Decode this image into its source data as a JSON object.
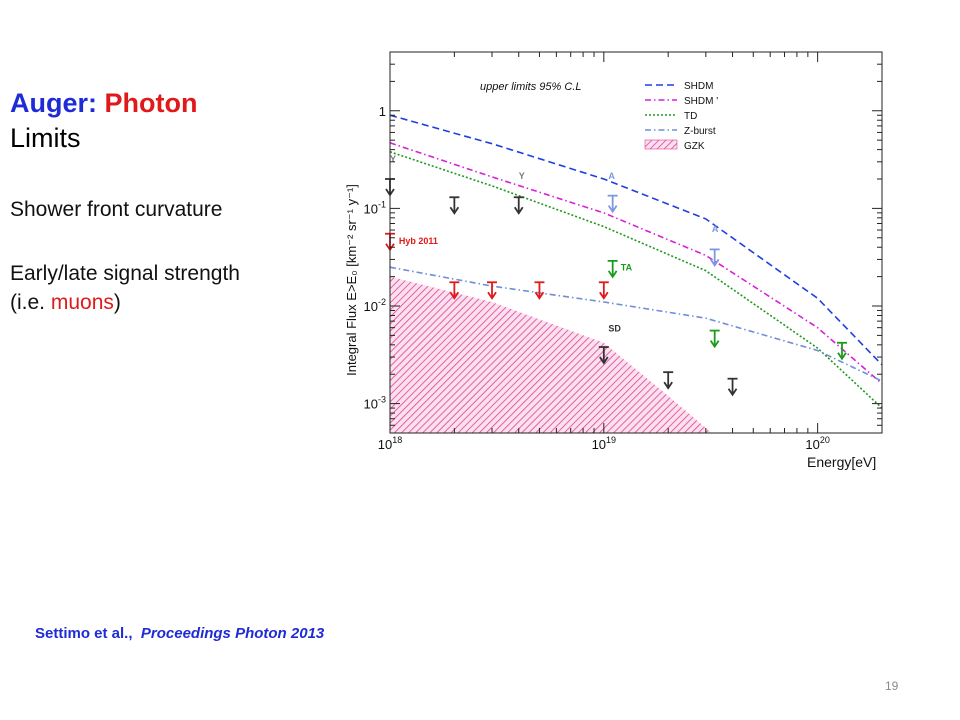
{
  "slide": {
    "title_part1": "Auger:",
    "title_part2": "Photon",
    "title_line2": "Limits",
    "bullet1": "Shower front curvature",
    "bullet2": "Early/late signal strength",
    "bullet3_prefix": "(i.e. ",
    "bullet3_highlight": "muons",
    "bullet3_suffix": ")",
    "citation_authors": "Settimo et al.,",
    "citation_venue": "Proceedings Photon 2013",
    "page_number": "19"
  },
  "chart_data": {
    "type": "line",
    "title": "upper limits 95% C.L",
    "xlabel": "Energy[eV]",
    "ylabel": "Integral Flux E>E₀ [km⁻² sr⁻¹ y⁻¹]",
    "x_scale": "log",
    "y_scale": "log",
    "xlim": [
      1e+18,
      2e+20
    ],
    "ylim": [
      0.0005,
      4
    ],
    "x_ticks": [
      {
        "value": 1e+18,
        "base": "10",
        "exp": "18"
      },
      {
        "value": 1e+19,
        "base": "10",
        "exp": "19"
      },
      {
        "value": 1e+20,
        "base": "10",
        "exp": "20"
      }
    ],
    "y_ticks": [
      {
        "value": 0.001,
        "base": "10",
        "exp": "-3"
      },
      {
        "value": 0.01,
        "base": "10",
        "exp": "-2"
      },
      {
        "value": 0.1,
        "base": "10",
        "exp": "-1"
      },
      {
        "value": 1,
        "base": "1",
        "exp": ""
      }
    ],
    "legend_position": "top-right",
    "series": [
      {
        "name": "SHDM",
        "color": "#1f3fe0",
        "dash": "7,4",
        "x": [
          1e+18,
          3e+18,
          1e+19,
          3e+19,
          1e+20,
          2e+20
        ],
        "y": [
          0.9,
          0.46,
          0.2,
          0.078,
          0.012,
          0.0025
        ]
      },
      {
        "name": "SHDM '",
        "color": "#d81fd8",
        "dash": "6,3,1.5,3",
        "x": [
          1e+18,
          3e+18,
          1e+19,
          3e+19,
          1e+20,
          2e+20
        ],
        "y": [
          0.47,
          0.21,
          0.09,
          0.033,
          0.006,
          0.0016
        ]
      },
      {
        "name": "TD",
        "color": "#1c9a1c",
        "dash": "2,2",
        "x": [
          1e+18,
          3e+18,
          1e+19,
          3e+19,
          1e+20,
          2e+20
        ],
        "y": [
          0.38,
          0.17,
          0.065,
          0.023,
          0.0037,
          0.0009
        ]
      },
      {
        "name": "Z-burst",
        "color": "#6f8fd8",
        "dash": "6,3,1.5,3",
        "x": [
          1e+18,
          3e+18,
          1e+19,
          3e+19,
          1e+20,
          2e+20
        ],
        "y": [
          0.025,
          0.016,
          0.011,
          0.0075,
          0.0035,
          0.0017
        ]
      }
    ],
    "gzk_band": {
      "name": "GZK",
      "color": "#e0409a",
      "x": [
        1e+18,
        3e+18,
        1e+19,
        2e+19,
        3.2e+19
      ],
      "y": [
        0.02,
        0.011,
        0.0042,
        0.0012,
        0.0005
      ]
    },
    "limits": [
      {
        "x": 1e+18,
        "y": 0.2,
        "color": "#333333"
      },
      {
        "x": 2e+18,
        "y": 0.13,
        "color": "#333333"
      },
      {
        "x": 4e+18,
        "y": 0.13,
        "color": "#333333"
      },
      {
        "x": 1e+18,
        "y": 0.055,
        "color": "#e01a1a"
      },
      {
        "x": 2e+18,
        "y": 0.0175,
        "color": "#e01a1a"
      },
      {
        "x": 3e+18,
        "y": 0.0175,
        "color": "#e01a1a"
      },
      {
        "x": 5e+18,
        "y": 0.0175,
        "color": "#e01a1a"
      },
      {
        "x": 1e+19,
        "y": 0.0175,
        "color": "#e01a1a"
      },
      {
        "x": 1.1e+19,
        "y": 0.135,
        "color": "#7f97e0"
      },
      {
        "x": 3.3e+19,
        "y": 0.038,
        "color": "#7f97e0"
      },
      {
        "x": 1.1e+19,
        "y": 0.029,
        "color": "#1c9a1c"
      },
      {
        "x": 3.3e+19,
        "y": 0.0056,
        "color": "#1c9a1c"
      },
      {
        "x": 1.3e+20,
        "y": 0.0042,
        "color": "#1c9a1c"
      },
      {
        "x": 1e+19,
        "y": 0.0038,
        "color": "#333333"
      },
      {
        "x": 2e+19,
        "y": 0.0021,
        "color": "#333333"
      },
      {
        "x": 4e+19,
        "y": 0.0018,
        "color": "#333333"
      }
    ],
    "annotations": [
      {
        "text": "Hyb 2011",
        "x": 1.1e+18,
        "y": 0.043,
        "color": "#e01a1a"
      },
      {
        "text": "TA",
        "x": 1.2e+19,
        "y": 0.023,
        "color": "#1c9a1c"
      },
      {
        "text": "SD",
        "x": 1.05e+19,
        "y": 0.0055,
        "color": "#333333"
      },
      {
        "text": "Y",
        "x": 1e+18,
        "y": 0.3,
        "color": "#7a7a7a"
      },
      {
        "text": "Y",
        "x": 4e+18,
        "y": 0.2,
        "color": "#7a7a7a"
      },
      {
        "text": "A",
        "x": 1.05e+19,
        "y": 0.2,
        "color": "#7f97e0"
      },
      {
        "text": "A",
        "x": 3.2e+19,
        "y": 0.057,
        "color": "#7f97e0"
      }
    ]
  }
}
